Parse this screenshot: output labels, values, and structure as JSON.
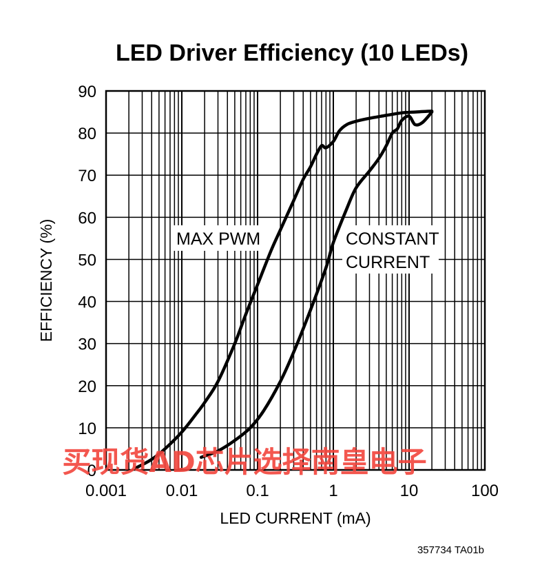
{
  "chart_data": {
    "type": "line",
    "title": "LED Driver Efficiency (10 LEDs)",
    "xlabel": "LED CURRENT (mA)",
    "ylabel": "EFFICIENCY (%)",
    "x_scale": "log",
    "xlim": [
      0.001,
      100
    ],
    "ylim": [
      0,
      90
    ],
    "grid": true,
    "x_ticks": [
      "0.001",
      "0.01",
      "0.1",
      "1",
      "10",
      "100"
    ],
    "y_ticks": [
      "0",
      "10",
      "20",
      "30",
      "40",
      "50",
      "60",
      "70",
      "80",
      "90"
    ],
    "series": [
      {
        "name": "MAX PWM",
        "x": [
          0.0025,
          0.004,
          0.006,
          0.01,
          0.015,
          0.02,
          0.03,
          0.05,
          0.07,
          0.1,
          0.15,
          0.2,
          0.3,
          0.4,
          0.5,
          0.6,
          0.7,
          0.8,
          1.0,
          1.2,
          1.5,
          2,
          3,
          5,
          8,
          12,
          20
        ],
        "y": [
          0.5,
          2.5,
          5,
          9,
          13,
          16,
          21,
          30,
          37,
          44,
          52,
          57,
          64,
          69,
          72,
          75,
          77,
          76.5,
          78,
          80.5,
          82,
          82.8,
          83.5,
          84.2,
          84.8,
          85,
          85.2
        ]
      },
      {
        "name": "CONSTANT CURRENT",
        "x": [
          0.018,
          0.03,
          0.05,
          0.08,
          0.12,
          0.2,
          0.3,
          0.5,
          0.8,
          1.0,
          1.5,
          2,
          3,
          4,
          5,
          6,
          7,
          8,
          10,
          12,
          15,
          20
        ],
        "y": [
          3,
          4.5,
          7,
          10,
          14,
          21,
          28,
          38,
          48,
          54,
          62,
          67,
          71,
          74,
          77,
          80,
          81,
          83,
          84,
          82,
          82.5,
          85
        ]
      }
    ],
    "annotations": [
      "MAX PWM",
      "CONSTANT",
      "CURRENT"
    ],
    "figure_code": "357734 TA01b"
  },
  "watermark": "买现货AD芯片选择南皇电子"
}
